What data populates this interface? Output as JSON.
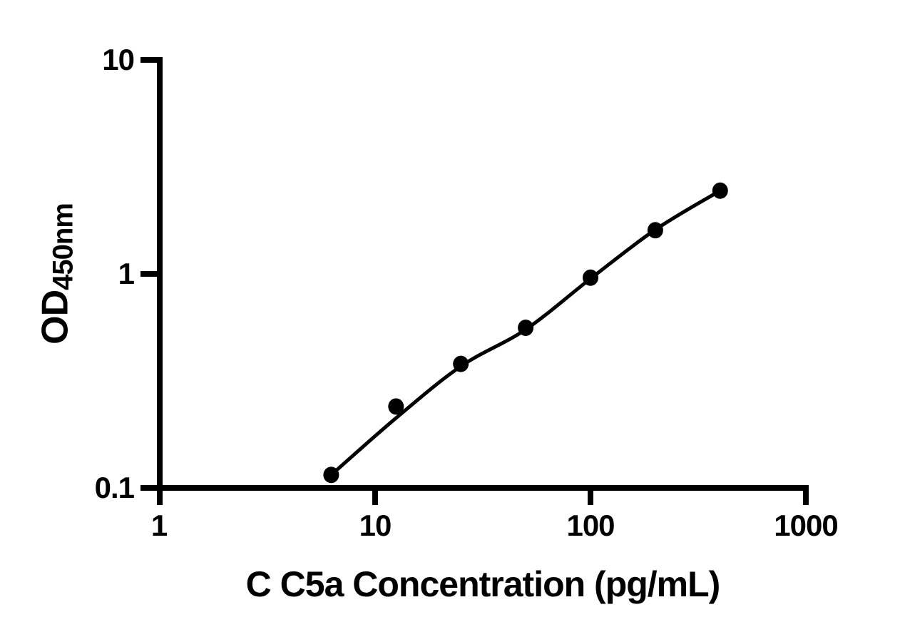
{
  "figure": {
    "background": "#ffffff",
    "line_color": "#000000",
    "text_color": "#000000",
    "marker_color": "#000000"
  },
  "chart_data": {
    "type": "scatter",
    "title": "",
    "xlabel": "C C5a Concentration (pg/mL)",
    "ylabel": "OD",
    "ylabel_subscript": "450nm",
    "x_scale": "log",
    "y_scale": "log",
    "xlim": [
      1,
      1000
    ],
    "ylim": [
      0.1,
      10
    ],
    "grid": false,
    "legend_position": "none",
    "marker": "filled-black-circle",
    "x_ticks": [
      1,
      10,
      100,
      1000
    ],
    "y_ticks": [
      10,
      1,
      0.1
    ],
    "x_tick_labels": [
      "1",
      "10",
      "100",
      "1000"
    ],
    "y_tick_labels": [
      "10",
      "1",
      "0.1"
    ],
    "x": [
      6.25,
      12.5,
      25,
      50,
      100,
      200,
      400
    ],
    "y": [
      0.115,
      0.24,
      0.38,
      0.56,
      0.96,
      1.6,
      2.45
    ],
    "fit_line_y": [
      0.115,
      0.212,
      0.37,
      0.55,
      0.95,
      1.61,
      2.45
    ]
  }
}
